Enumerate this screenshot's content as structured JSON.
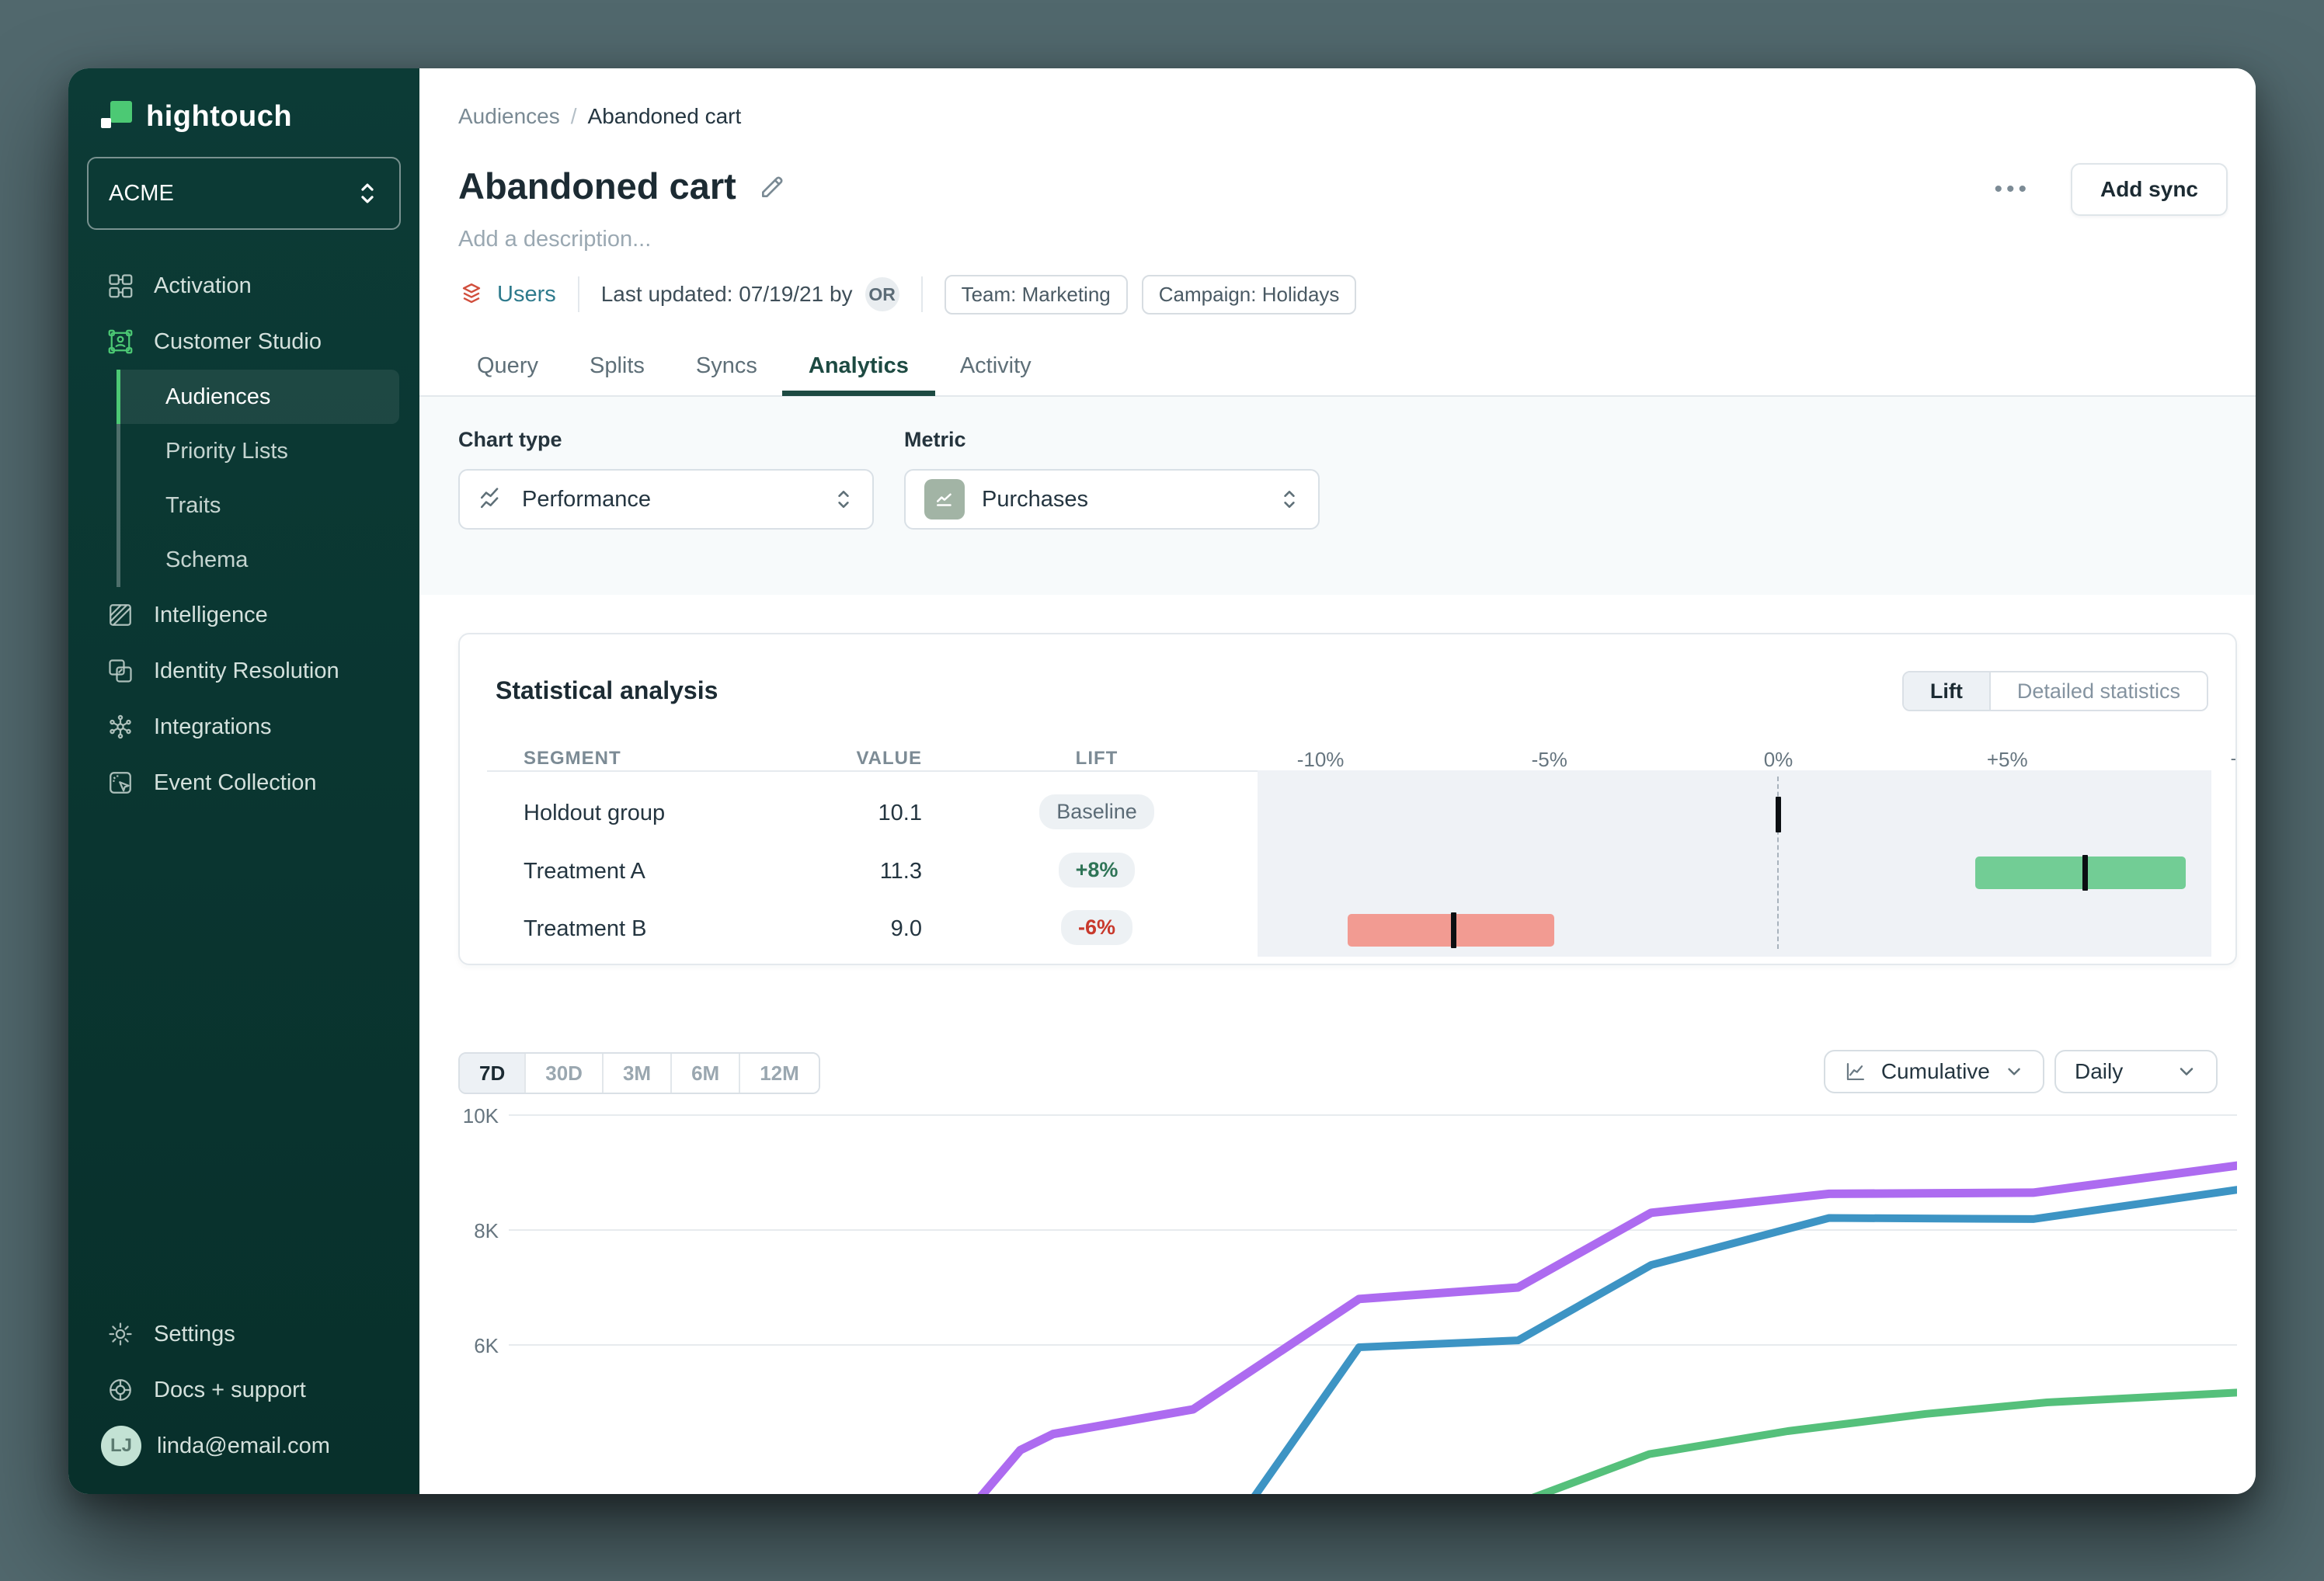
{
  "app": {
    "brand": "hightouch",
    "workspace": "ACME"
  },
  "colors": {
    "accent_green": "#4CC974",
    "sidebar_bg": "#0C3B36",
    "desktop_bg": "#51686D",
    "tab_active": "#1D4A42",
    "lift_bar_green": "#72CD95",
    "lift_bar_red": "#F29B92",
    "line_purple": "#AD6BF0",
    "line_blue": "#3D94C4",
    "line_green": "#55C07B"
  },
  "sidebar": {
    "nav": [
      {
        "label": "Activation"
      },
      {
        "label": "Customer Studio"
      }
    ],
    "customer_studio_children": [
      {
        "label": "Audiences",
        "active": true
      },
      {
        "label": "Priority Lists"
      },
      {
        "label": "Traits"
      },
      {
        "label": "Schema"
      }
    ],
    "nav_lower": [
      {
        "label": "Intelligence"
      },
      {
        "label": "Identity Resolution"
      },
      {
        "label": "Integrations"
      },
      {
        "label": "Event Collection"
      }
    ],
    "footer": [
      {
        "label": "Settings"
      },
      {
        "label": "Docs + support"
      }
    ],
    "user": {
      "initials": "LJ",
      "email": "linda@email.com"
    }
  },
  "header": {
    "breadcrumb": {
      "parent": "Audiences",
      "separator": "/",
      "current": "Abandoned cart"
    },
    "title": "Abandoned cart",
    "description_placeholder": "Add a description...",
    "more_label": "•••",
    "add_sync_label": "Add sync",
    "meta": {
      "parent_model": "Users",
      "last_updated": "Last updated: 07/19/21 by",
      "updated_by_initials": "OR",
      "tags": [
        "Team: Marketing",
        "Campaign: Holidays"
      ]
    },
    "tabs": [
      {
        "label": "Query"
      },
      {
        "label": "Splits"
      },
      {
        "label": "Syncs"
      },
      {
        "label": "Analytics",
        "active": true
      },
      {
        "label": "Activity"
      }
    ]
  },
  "filters": {
    "chart_type": {
      "label": "Chart type",
      "value": "Performance"
    },
    "metric": {
      "label": "Metric",
      "value": "Purchases"
    }
  },
  "statistical_analysis": {
    "title": "Statistical analysis",
    "toggle": [
      {
        "label": "Lift",
        "active": true
      },
      {
        "label": "Detailed statistics",
        "active": false
      }
    ],
    "columns": {
      "segment": "SEGMENT",
      "value": "VALUE",
      "lift": "LIFT"
    },
    "axis_labels": [
      {
        "label": "-10%",
        "pct": -10
      },
      {
        "label": "-5%",
        "pct": -5
      },
      {
        "label": "0%",
        "pct": 0
      },
      {
        "label": "+5%",
        "pct": 5
      },
      {
        "label": "+",
        "pct": 10
      }
    ],
    "rows": [
      {
        "segment": "Holdout group",
        "value": "10.1",
        "lift": "Baseline",
        "lift_style": "baseline",
        "marker": {
          "center": 0
        }
      },
      {
        "segment": "Treatment A",
        "value": "11.3",
        "lift": "+8%",
        "lift_style": "positive",
        "marker": {
          "low": 4.3,
          "high": 8.9,
          "center": 6.7,
          "color": "#72CD95"
        }
      },
      {
        "segment": "Treatment B",
        "value": "9.0",
        "lift": "-6%",
        "lift_style": "negative",
        "marker": {
          "low": -9.4,
          "high": -4.9,
          "center": -7.1,
          "color": "#F29B92"
        }
      }
    ]
  },
  "timeseries": {
    "ranges": [
      {
        "label": "7D",
        "active": true
      },
      {
        "label": "30D"
      },
      {
        "label": "3M"
      },
      {
        "label": "6M"
      },
      {
        "label": "12M"
      }
    ],
    "mode": {
      "value": "Cumulative"
    },
    "granularity": {
      "value": "Daily"
    },
    "y_ticks": [
      "10K",
      "8K",
      "6K"
    ]
  },
  "chart_data": [
    {
      "type": "interval",
      "title": "Statistical analysis — Lift",
      "x_unit": "% lift vs holdout",
      "x_ticks_pct": [
        -10,
        -5,
        0,
        5,
        10
      ],
      "rows": [
        {
          "name": "Holdout group",
          "value": 10.1,
          "lift": "Baseline",
          "marker_pct": 0
        },
        {
          "name": "Treatment A",
          "value": 11.3,
          "lift_pct": 8,
          "interval_pct": [
            4.3,
            8.9
          ],
          "marker_pct": 6.7
        },
        {
          "name": "Treatment B",
          "value": 9.0,
          "lift_pct": -6,
          "interval_pct": [
            -9.4,
            -4.9
          ],
          "marker_pct": -7.1
        }
      ]
    },
    {
      "type": "line",
      "title": "Purchases — Cumulative, Daily, 7D",
      "y_ticks": [
        "10K",
        "8K",
        "6K"
      ],
      "y_unit": "K",
      "ylim_visible": [
        3.4,
        10
      ],
      "grid": "horizontal",
      "x_note": "x-axis labels clipped below window edge",
      "series": [
        {
          "name": "purple",
          "color": "#AD6BF0",
          "width": 11,
          "points": [
            [
              0.27,
              3.25
            ],
            [
              0.296,
              4.17
            ],
            [
              0.315,
              4.45
            ],
            [
              0.396,
              4.88
            ],
            [
              0.492,
              6.8
            ],
            [
              0.584,
              7.0
            ],
            [
              0.661,
              8.3
            ],
            [
              0.764,
              8.63
            ],
            [
              0.882,
              8.65
            ],
            [
              1.0,
              9.12
            ]
          ]
        },
        {
          "name": "blue",
          "color": "#3D94C4",
          "width": 10,
          "points": [
            [
              0.43,
              3.3
            ],
            [
              0.492,
              5.96
            ],
            [
              0.584,
              6.08
            ],
            [
              0.661,
              7.39
            ],
            [
              0.764,
              8.21
            ],
            [
              0.882,
              8.19
            ],
            [
              1.0,
              8.7
            ]
          ]
        },
        {
          "name": "green",
          "color": "#55C07B",
          "width": 10,
          "points": [
            [
              0.58,
              3.2
            ],
            [
              0.66,
              4.1
            ],
            [
              0.74,
              4.5
            ],
            [
              0.82,
              4.8
            ],
            [
              0.89,
              5.0
            ],
            [
              1.0,
              5.17
            ]
          ]
        }
      ]
    }
  ]
}
